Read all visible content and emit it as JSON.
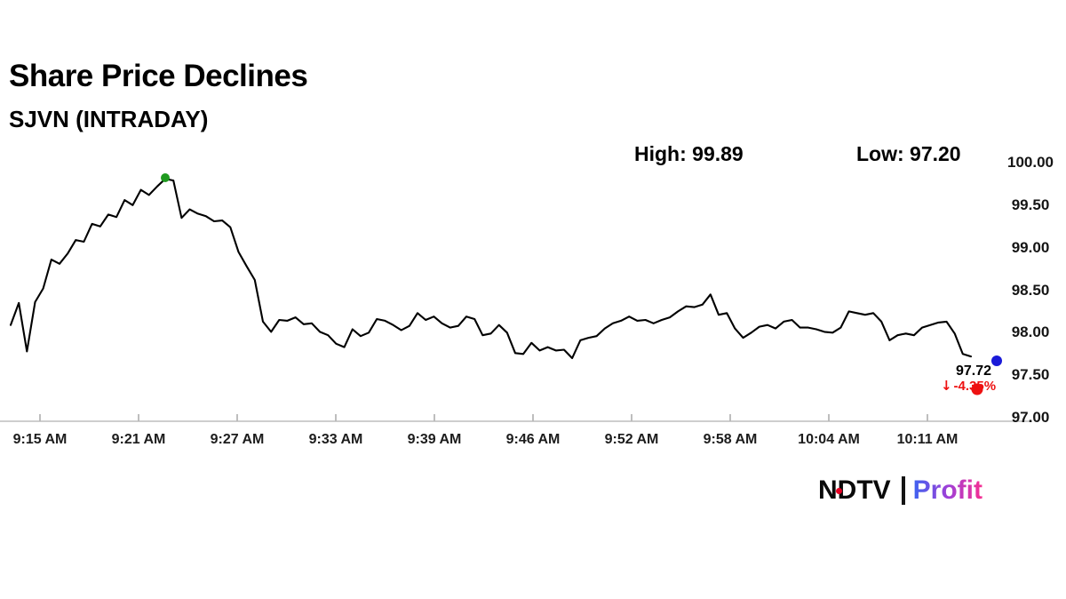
{
  "header": {
    "title": "Share Price Declines",
    "subtitle": "SJVN (INTRADAY)"
  },
  "stats": {
    "high_label": "High: 99.89",
    "low_label": "Low: 97.20"
  },
  "price_callout": {
    "price": "97.72",
    "arrow": "↓",
    "change": "-4.35%",
    "color": "#ee1111"
  },
  "branding": {
    "ndtv": "NDTV",
    "profit": "Profit",
    "ndtv_dot_color": "#e60023",
    "separator_color": "#141414",
    "profit_gradient": [
      "#3e63f0",
      "#a13fd6",
      "#fb2e8e"
    ]
  },
  "chart_data": {
    "type": "line",
    "title": "Share Price Declines",
    "instrument": "SJVN (INTRADAY)",
    "x_start": "9:15 AM",
    "x_end": "10:14 AM",
    "sample_interval_min": 0.5,
    "x_tick_labels": [
      "9:15 AM",
      "9:21 AM",
      "9:27 AM",
      "9:33 AM",
      "9:39 AM",
      "9:46 AM",
      "9:52 AM",
      "9:58 AM",
      "10:04 AM",
      "10:11 AM"
    ],
    "y_tick_values": [
      100.0,
      99.5,
      99.0,
      98.5,
      98.0,
      97.5,
      97.0
    ],
    "y_tick_labels": [
      "100.00",
      "99.50",
      "99.00",
      "98.50",
      "98.00",
      "97.50",
      "97.00"
    ],
    "y_range": [
      97.0,
      100.0
    ],
    "high": 99.89,
    "low": 97.2,
    "last": 97.72,
    "change_pct": -4.35,
    "grid": false,
    "legend": null,
    "line_color": "#000000",
    "prices": [
      98.09,
      98.35,
      97.78,
      98.36,
      98.52,
      98.86,
      98.81,
      98.93,
      99.09,
      99.07,
      99.28,
      99.25,
      99.39,
      99.36,
      99.56,
      99.5,
      99.68,
      99.62,
      99.72,
      99.81,
      99.79,
      99.35,
      99.45,
      99.4,
      99.37,
      99.31,
      99.32,
      99.24,
      98.95,
      98.78,
      98.62,
      98.13,
      98.01,
      98.15,
      98.14,
      98.18,
      98.1,
      98.11,
      98.01,
      97.97,
      97.87,
      97.83,
      98.04,
      97.96,
      98.0,
      98.16,
      98.14,
      98.09,
      98.03,
      98.08,
      98.23,
      98.15,
      98.19,
      98.11,
      98.06,
      98.08,
      98.19,
      98.16,
      97.97,
      97.99,
      98.09,
      98.0,
      97.76,
      97.75,
      97.88,
      97.79,
      97.83,
      97.79,
      97.8,
      97.7,
      97.91,
      97.94,
      97.96,
      98.05,
      98.11,
      98.14,
      98.19,
      98.14,
      98.15,
      98.11,
      98.15,
      98.18,
      98.25,
      98.31,
      98.3,
      98.33,
      98.45,
      98.21,
      98.23,
      98.05,
      97.94,
      98.0,
      98.07,
      98.09,
      98.05,
      98.13,
      98.15,
      98.06,
      98.06,
      98.04,
      98.01,
      98.0,
      98.06,
      98.25,
      98.23,
      98.21,
      98.23,
      98.13,
      97.91,
      97.97,
      97.99,
      97.97,
      98.06,
      98.09,
      98.12,
      98.13,
      97.99,
      97.75,
      97.72
    ],
    "markers": [
      {
        "name": "high-point-marker",
        "minute": 9.5,
        "price": 99.82,
        "color": "#1f9a1f",
        "size": 10
      },
      {
        "name": "low-point-marker",
        "minute": 59.4,
        "price": 97.34,
        "color": "#ee1111",
        "size": 13
      },
      {
        "name": "last-price-marker",
        "minute": 60.6,
        "price": 97.67,
        "color": "#1a1ad8",
        "size": 12
      }
    ]
  }
}
